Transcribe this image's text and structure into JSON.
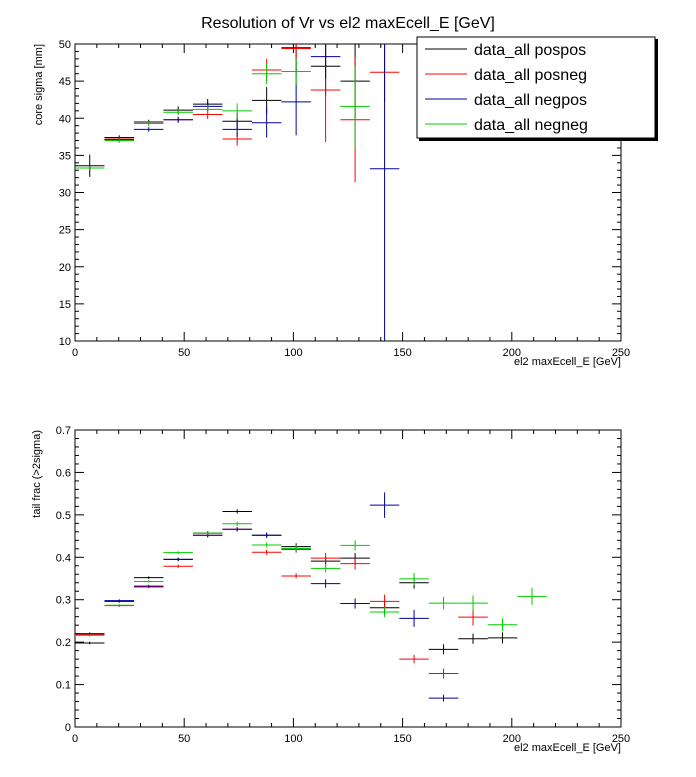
{
  "colors": {
    "pospos": "#000000",
    "posneg": "#ff0000",
    "negpos": "#000099",
    "negneg": "#00cc00",
    "axis": "#000000",
    "background": "#ffffff"
  },
  "chart_data": [
    {
      "type": "scatter",
      "style": "error-crosses",
      "title": "Resolution of Vr vs  el2 maxEcell_E [GeV]",
      "xlabel": "el2 maxEcell_E [GeV]",
      "ylabel": "core sigma [mm]",
      "xlim": [
        0,
        250
      ],
      "ylim": [
        10,
        50
      ],
      "xticks": [
        0,
        50,
        100,
        150,
        200,
        250
      ],
      "xtick_labels": [
        "0",
        "50",
        "100",
        "150",
        "200",
        "250"
      ],
      "yticks": [
        10,
        15,
        20,
        25,
        30,
        35,
        40,
        45,
        50
      ],
      "ytick_labels": [
        "10",
        "15",
        "20",
        "25",
        "30",
        "35",
        "40",
        "45",
        "50"
      ],
      "legend": {
        "placement": "top-right",
        "entries": [
          "data_all pospos",
          "data_all posneg",
          "data_all negpos",
          "data_all negneg"
        ]
      },
      "series": [
        {
          "name": "data_all pospos",
          "key": "pospos",
          "points": [
            {
              "x": 6.75,
              "xerr": 6.75,
              "y": 33.6,
              "yerr": 1.5
            },
            {
              "x": 20.25,
              "xerr": 6.75,
              "y": 37.4,
              "yerr": 0.3
            },
            {
              "x": 33.75,
              "xerr": 6.75,
              "y": 39.5,
              "yerr": 0.3
            },
            {
              "x": 47.25,
              "xerr": 6.75,
              "y": 41.1,
              "yerr": 0.5
            },
            {
              "x": 60.75,
              "xerr": 6.75,
              "y": 41.9,
              "yerr": 0.7
            },
            {
              "x": 74.25,
              "xerr": 6.75,
              "y": 39.6,
              "yerr": 1.2
            },
            {
              "x": 87.75,
              "xerr": 6.75,
              "y": 42.4,
              "yerr": 1.8
            },
            {
              "x": 101.25,
              "xerr": 6.75,
              "y": 49.5,
              "yerr": 3.5
            },
            {
              "x": 114.75,
              "xerr": 6.75,
              "y": 47.0,
              "yerr": 4.0
            },
            {
              "x": 128.25,
              "xerr": 6.75,
              "y": 45.0,
              "yerr": 5.0
            }
          ]
        },
        {
          "name": "data_all posneg",
          "key": "posneg",
          "points": [
            {
              "x": 6.75,
              "xerr": 6.75,
              "y": 33.3,
              "yerr": 0.3
            },
            {
              "x": 20.25,
              "xerr": 6.75,
              "y": 37.2,
              "yerr": 0.3
            },
            {
              "x": 33.75,
              "xerr": 6.75,
              "y": 39.3,
              "yerr": 0.3
            },
            {
              "x": 47.25,
              "xerr": 6.75,
              "y": 39.8,
              "yerr": 0.4
            },
            {
              "x": 60.75,
              "xerr": 6.75,
              "y": 40.5,
              "yerr": 0.6
            },
            {
              "x": 74.25,
              "xerr": 6.75,
              "y": 37.2,
              "yerr": 0.9
            },
            {
              "x": 87.75,
              "xerr": 6.75,
              "y": 46.5,
              "yerr": 1.5
            },
            {
              "x": 101.25,
              "xerr": 6.75,
              "y": 49.4,
              "yerr": 3.0
            },
            {
              "x": 114.75,
              "xerr": 6.75,
              "y": 43.8,
              "yerr": 7.0
            },
            {
              "x": 128.25,
              "xerr": 6.75,
              "y": 39.8,
              "yerr": 8.4
            },
            {
              "x": 141.75,
              "xerr": 6.75,
              "y": 46.2,
              "yerr": 4.0
            }
          ]
        },
        {
          "name": "data_all negpos",
          "key": "negpos",
          "points": [
            {
              "x": 6.75,
              "xerr": 6.75,
              "y": 33.3,
              "yerr": 0.3
            },
            {
              "x": 20.25,
              "xerr": 6.75,
              "y": 37.1,
              "yerr": 0.3
            },
            {
              "x": 33.75,
              "xerr": 6.75,
              "y": 38.5,
              "yerr": 0.3
            },
            {
              "x": 47.25,
              "xerr": 6.75,
              "y": 39.8,
              "yerr": 0.4
            },
            {
              "x": 60.75,
              "xerr": 6.75,
              "y": 41.6,
              "yerr": 0.6
            },
            {
              "x": 74.25,
              "xerr": 6.75,
              "y": 38.5,
              "yerr": 1.0
            },
            {
              "x": 87.75,
              "xerr": 6.75,
              "y": 39.4,
              "yerr": 2.0
            },
            {
              "x": 101.25,
              "xerr": 6.75,
              "y": 42.2,
              "yerr": 4.5
            },
            {
              "x": 114.75,
              "xerr": 6.75,
              "y": 48.3,
              "yerr": 3.0
            },
            {
              "x": 141.75,
              "xerr": 6.75,
              "y": 33.2,
              "yerr": 23.2
            }
          ]
        },
        {
          "name": "data_all negneg",
          "key": "negneg",
          "points": [
            {
              "x": 6.75,
              "xerr": 6.75,
              "y": 33.3,
              "yerr": 0.3
            },
            {
              "x": 20.25,
              "xerr": 6.75,
              "y": 37.0,
              "yerr": 0.3
            },
            {
              "x": 33.75,
              "xerr": 6.75,
              "y": 39.3,
              "yerr": 0.3
            },
            {
              "x": 47.25,
              "xerr": 6.75,
              "y": 40.8,
              "yerr": 0.4
            },
            {
              "x": 60.75,
              "xerr": 6.75,
              "y": 41.2,
              "yerr": 0.6
            },
            {
              "x": 74.25,
              "xerr": 6.75,
              "y": 41.0,
              "yerr": 1.0
            },
            {
              "x": 87.75,
              "xerr": 6.75,
              "y": 46.0,
              "yerr": 1.4
            },
            {
              "x": 101.25,
              "xerr": 6.75,
              "y": 46.3,
              "yerr": 1.8
            },
            {
              "x": 128.25,
              "xerr": 6.75,
              "y": 41.6,
              "yerr": 5.5
            }
          ]
        }
      ]
    },
    {
      "type": "scatter",
      "style": "error-crosses",
      "title": "",
      "xlabel": "el2 maxEcell_E [GeV]",
      "ylabel": "tail frac (>2sigma)",
      "xlim": [
        0,
        250
      ],
      "ylim": [
        0,
        0.7
      ],
      "xticks": [
        0,
        50,
        100,
        150,
        200,
        250
      ],
      "xtick_labels": [
        "0",
        "50",
        "100",
        "150",
        "200",
        "250"
      ],
      "yticks": [
        0,
        0.1,
        0.2,
        0.3,
        0.4,
        0.5,
        0.6,
        0.7
      ],
      "ytick_labels": [
        "0",
        "0.1",
        "0.2",
        "0.3",
        "0.4",
        "0.5",
        "0.6",
        "0.7"
      ],
      "series": [
        {
          "name": "data_all pospos",
          "key": "pospos",
          "points": [
            {
              "x": 6.75,
              "xerr": 6.75,
              "y": 0.198,
              "yerr": 0.003
            },
            {
              "x": 20.25,
              "xerr": 6.75,
              "y": 0.296,
              "yerr": 0.003
            },
            {
              "x": 33.75,
              "xerr": 6.75,
              "y": 0.352,
              "yerr": 0.003
            },
            {
              "x": 47.25,
              "xerr": 6.75,
              "y": 0.395,
              "yerr": 0.004
            },
            {
              "x": 60.75,
              "xerr": 6.75,
              "y": 0.457,
              "yerr": 0.005
            },
            {
              "x": 74.25,
              "xerr": 6.75,
              "y": 0.508,
              "yerr": 0.005
            },
            {
              "x": 87.75,
              "xerr": 6.75,
              "y": 0.452,
              "yerr": 0.006
            },
            {
              "x": 101.25,
              "xerr": 6.75,
              "y": 0.425,
              "yerr": 0.008
            },
            {
              "x": 114.75,
              "xerr": 6.75,
              "y": 0.391,
              "yerr": 0.01
            },
            {
              "x": 128.25,
              "xerr": 6.75,
              "y": 0.398,
              "yerr": 0.012
            },
            {
              "x": 141.75,
              "xerr": 6.75,
              "y": 0.281,
              "yerr": 0.015
            },
            {
              "x": 155.25,
              "xerr": 6.75,
              "y": 0.34,
              "yerr": 0.014
            },
            {
              "x": 168.75,
              "xerr": 6.75,
              "y": 0.183,
              "yerr": 0.012
            },
            {
              "x": 182.25,
              "xerr": 6.75,
              "y": 0.208,
              "yerr": 0.012
            },
            {
              "x": 195.75,
              "xerr": 6.75,
              "y": 0.21,
              "yerr": 0.013
            }
          ]
        },
        {
          "name": "data_all posneg",
          "key": "posneg",
          "points": [
            {
              "x": 6.75,
              "xerr": 6.75,
              "y": 0.218,
              "yerr": 0.003
            },
            {
              "x": 20.25,
              "xerr": 6.75,
              "y": 0.286,
              "yerr": 0.003
            },
            {
              "x": 33.75,
              "xerr": 6.75,
              "y": 0.33,
              "yerr": 0.003
            },
            {
              "x": 47.25,
              "xerr": 6.75,
              "y": 0.379,
              "yerr": 0.004
            },
            {
              "x": 60.75,
              "xerr": 6.75,
              "y": 0.452,
              "yerr": 0.005
            },
            {
              "x": 74.25,
              "xerr": 6.75,
              "y": 0.466,
              "yerr": 0.005
            },
            {
              "x": 87.75,
              "xerr": 6.75,
              "y": 0.412,
              "yerr": 0.006
            },
            {
              "x": 101.25,
              "xerr": 6.75,
              "y": 0.356,
              "yerr": 0.006
            },
            {
              "x": 114.75,
              "xerr": 6.75,
              "y": 0.398,
              "yerr": 0.012
            },
            {
              "x": 128.25,
              "xerr": 6.75,
              "y": 0.385,
              "yerr": 0.014
            },
            {
              "x": 141.75,
              "xerr": 6.75,
              "y": 0.296,
              "yerr": 0.016
            },
            {
              "x": 155.25,
              "xerr": 6.75,
              "y": 0.16,
              "yerr": 0.01
            },
            {
              "x": 168.75,
              "xerr": 6.75,
              "y": 0.126,
              "yerr": 0.012
            },
            {
              "x": 182.25,
              "xerr": 6.75,
              "y": 0.259,
              "yerr": 0.02
            }
          ]
        },
        {
          "name": "data_all negpos",
          "key": "negpos",
          "points": [
            {
              "x": 6.75,
              "xerr": 6.75,
              "y": 0.22,
              "yerr": 0.003
            },
            {
              "x": 20.25,
              "xerr": 6.75,
              "y": 0.298,
              "yerr": 0.003
            },
            {
              "x": 33.75,
              "xerr": 6.75,
              "y": 0.332,
              "yerr": 0.003
            },
            {
              "x": 47.25,
              "xerr": 6.75,
              "y": 0.395,
              "yerr": 0.004
            },
            {
              "x": 60.75,
              "xerr": 6.75,
              "y": 0.452,
              "yerr": 0.005
            },
            {
              "x": 74.25,
              "xerr": 6.75,
              "y": 0.466,
              "yerr": 0.005
            },
            {
              "x": 87.75,
              "xerr": 6.75,
              "y": 0.452,
              "yerr": 0.006
            },
            {
              "x": 101.25,
              "xerr": 6.75,
              "y": 0.419,
              "yerr": 0.008
            },
            {
              "x": 114.75,
              "xerr": 6.75,
              "y": 0.338,
              "yerr": 0.01
            },
            {
              "x": 128.25,
              "xerr": 6.75,
              "y": 0.291,
              "yerr": 0.012
            },
            {
              "x": 141.75,
              "xerr": 6.75,
              "y": 0.523,
              "yerr": 0.03
            },
            {
              "x": 155.25,
              "xerr": 6.75,
              "y": 0.256,
              "yerr": 0.02
            },
            {
              "x": 168.75,
              "xerr": 6.75,
              "y": 0.068,
              "yerr": 0.008
            }
          ]
        },
        {
          "name": "data_all negneg",
          "key": "negneg",
          "points": [
            {
              "x": 6.75,
              "xerr": 6.75,
              "y": 0.216,
              "yerr": 0.003
            },
            {
              "x": 20.25,
              "xerr": 6.75,
              "y": 0.287,
              "yerr": 0.003
            },
            {
              "x": 33.75,
              "xerr": 6.75,
              "y": 0.343,
              "yerr": 0.003
            },
            {
              "x": 47.25,
              "xerr": 6.75,
              "y": 0.411,
              "yerr": 0.004
            },
            {
              "x": 60.75,
              "xerr": 6.75,
              "y": 0.457,
              "yerr": 0.005
            },
            {
              "x": 74.25,
              "xerr": 6.75,
              "y": 0.479,
              "yerr": 0.005
            },
            {
              "x": 87.75,
              "xerr": 6.75,
              "y": 0.429,
              "yerr": 0.006
            },
            {
              "x": 101.25,
              "xerr": 6.75,
              "y": 0.421,
              "yerr": 0.008
            },
            {
              "x": 114.75,
              "xerr": 6.75,
              "y": 0.374,
              "yerr": 0.01
            },
            {
              "x": 128.25,
              "xerr": 6.75,
              "y": 0.428,
              "yerr": 0.012
            },
            {
              "x": 141.75,
              "xerr": 6.75,
              "y": 0.271,
              "yerr": 0.012
            },
            {
              "x": 155.25,
              "xerr": 6.75,
              "y": 0.349,
              "yerr": 0.014
            },
            {
              "x": 168.75,
              "xerr": 6.75,
              "y": 0.292,
              "yerr": 0.015
            },
            {
              "x": 182.25,
              "xerr": 6.75,
              "y": 0.292,
              "yerr": 0.018
            },
            {
              "x": 195.75,
              "xerr": 6.75,
              "y": 0.241,
              "yerr": 0.015
            },
            {
              "x": 209.25,
              "xerr": 6.75,
              "y": 0.308,
              "yerr": 0.02
            }
          ]
        }
      ]
    }
  ]
}
